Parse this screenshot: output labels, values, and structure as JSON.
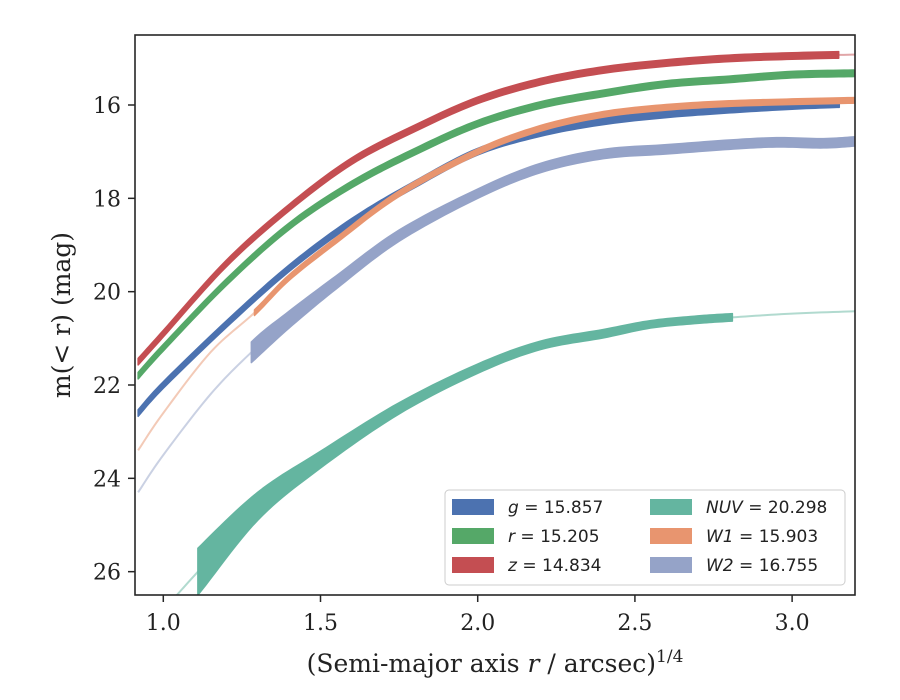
{
  "chart_data": {
    "type": "line",
    "xlabel": "(Semi-major axis r / arcsec)",
    "xlabel_superscript": "1/4",
    "ylabel": "m(< r) (mag)",
    "xlim": [
      0.91,
      3.2
    ],
    "ylim": [
      26.5,
      14.5
    ],
    "y_inverted": true,
    "grid": false,
    "legend_placement": "lower-right",
    "x_ticks": [
      "1.0",
      "1.5",
      "2.0",
      "2.5",
      "3.0"
    ],
    "y_ticks": [
      "16",
      "18",
      "20",
      "22",
      "24",
      "26"
    ],
    "series": [
      {
        "name": "g = 15.857",
        "legend_var": "g",
        "legend_value": "15.857",
        "color": "#4c72b0",
        "x": [
          0.92,
          1.0,
          1.2,
          1.4,
          1.6,
          1.8,
          2.0,
          2.2,
          2.4,
          2.6,
          2.8,
          3.0,
          3.15
        ],
        "y": [
          22.6,
          22.0,
          20.7,
          19.5,
          18.5,
          17.7,
          17.0,
          16.6,
          16.35,
          16.2,
          16.1,
          16.02,
          15.98
        ],
        "band": 0.07,
        "solid_from": 0.92
      },
      {
        "name": "r = 15.205",
        "legend_var": "r",
        "legend_value": "15.205",
        "color": "#55a868",
        "x": [
          0.92,
          1.0,
          1.2,
          1.4,
          1.6,
          1.8,
          2.0,
          2.2,
          2.4,
          2.6,
          2.8,
          3.0,
          3.2
        ],
        "y": [
          21.8,
          21.2,
          19.8,
          18.6,
          17.7,
          17.0,
          16.4,
          16.0,
          15.75,
          15.55,
          15.45,
          15.35,
          15.32
        ],
        "band": 0.07,
        "solid_from": 0.92
      },
      {
        "name": "z = 14.834",
        "legend_var": "z",
        "legend_value": "14.834",
        "color": "#c44e52",
        "x": [
          0.92,
          1.0,
          1.2,
          1.4,
          1.6,
          1.8,
          2.0,
          2.2,
          2.4,
          2.6,
          2.8,
          3.0,
          3.2
        ],
        "y": [
          21.5,
          20.9,
          19.4,
          18.2,
          17.2,
          16.5,
          15.9,
          15.5,
          15.25,
          15.1,
          15.0,
          14.95,
          14.92
        ],
        "band": 0.07,
        "solid_from": 0.92,
        "solid_to": 3.15
      },
      {
        "name": "NUV = 20.298",
        "legend_var": "NUV",
        "legend_value": "20.298",
        "color": "#64b5a0",
        "x": [
          1.03,
          1.11,
          1.3,
          1.5,
          1.75,
          2.0,
          2.2,
          2.4,
          2.55,
          2.7,
          2.81,
          3.0,
          3.2
        ],
        "y": [
          26.6,
          26.0,
          24.6,
          23.6,
          22.5,
          21.65,
          21.15,
          20.9,
          20.7,
          20.6,
          20.55,
          20.47,
          20.42
        ],
        "band": [
          0.5,
          0.5,
          0.3,
          0.18,
          0.12,
          0.1,
          0.09,
          0.09,
          0.08,
          0.08,
          0.08,
          0.08,
          0.08
        ],
        "solid_from": 1.11,
        "solid_to": 2.81
      },
      {
        "name": "W1 = 15.903",
        "legend_var": "W1",
        "legend_value": "15.903",
        "color": "#e8956f",
        "x": [
          0.92,
          1.0,
          1.15,
          1.29,
          1.4,
          1.55,
          1.75,
          2.0,
          2.2,
          2.4,
          2.6,
          2.8,
          3.0,
          3.2
        ],
        "y": [
          23.4,
          22.6,
          21.3,
          20.45,
          19.7,
          18.9,
          17.9,
          17.0,
          16.5,
          16.2,
          16.05,
          15.97,
          15.93,
          15.9
        ],
        "band": 0.06,
        "solid_from": 1.29
      },
      {
        "name": "W2 = 16.755",
        "legend_var": "W2",
        "legend_value": "16.755",
        "color": "#95a3c8",
        "x": [
          0.92,
          1.0,
          1.15,
          1.28,
          1.4,
          1.55,
          1.75,
          2.0,
          2.2,
          2.4,
          2.6,
          2.8,
          2.95,
          3.1,
          3.2
        ],
        "y": [
          24.3,
          23.5,
          22.2,
          21.3,
          20.6,
          19.8,
          18.8,
          17.9,
          17.35,
          17.05,
          16.95,
          16.85,
          16.8,
          16.82,
          16.78
        ],
        "band": [
          0.12,
          0.12,
          0.12,
          0.22,
          0.18,
          0.14,
          0.12,
          0.1,
          0.1,
          0.1,
          0.1,
          0.1,
          0.1,
          0.1,
          0.1
        ],
        "solid_from": 1.28
      }
    ]
  }
}
